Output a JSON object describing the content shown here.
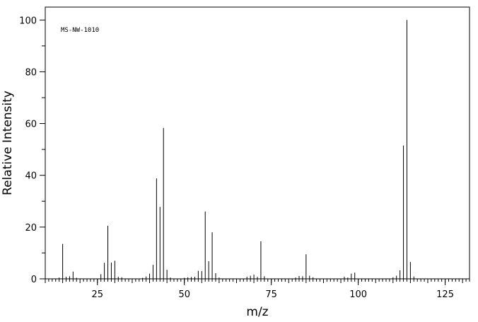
{
  "chart_data": {
    "type": "bar",
    "title": "",
    "annotation": "MS-NW-1010",
    "xlabel": "m/z",
    "ylabel": "Relative Intensity",
    "xlim": [
      10,
      132
    ],
    "ylim": [
      0,
      105
    ],
    "xticks": [
      25,
      50,
      75,
      100,
      125
    ],
    "yticks": [
      0,
      20,
      40,
      60,
      80,
      100
    ],
    "grid": false,
    "legend": "none",
    "x": [
      14,
      15,
      16,
      17,
      18,
      19,
      26,
      27,
      28,
      29,
      30,
      31,
      32,
      38,
      39,
      40,
      41,
      42,
      43,
      44,
      45,
      46,
      50,
      51,
      52,
      53,
      54,
      55,
      56,
      57,
      58,
      59,
      60,
      68,
      69,
      70,
      71,
      72,
      73,
      82,
      83,
      84,
      85,
      86,
      87,
      96,
      97,
      98,
      99,
      110,
      111,
      112,
      113,
      114,
      115,
      116
    ],
    "values": [
      0.5,
      13.5,
      0.8,
      1.0,
      2.8,
      0.4,
      1.8,
      6.2,
      20.5,
      6.3,
      7.0,
      0.8,
      0.6,
      0.4,
      0.9,
      2.0,
      5.4,
      38.8,
      27.8,
      58.3,
      3.5,
      0.5,
      0.4,
      0.6,
      0.7,
      0.8,
      3.1,
      3.0,
      26.0,
      6.8,
      18.0,
      2.2,
      0.5,
      0.8,
      1.2,
      1.6,
      0.8,
      14.5,
      1.0,
      0.5,
      1.1,
      1.0,
      9.5,
      1.2,
      0.6,
      0.8,
      0.5,
      2.0,
      2.4,
      0.6,
      1.2,
      3.3,
      51.5,
      100.0,
      6.5,
      0.9
    ]
  }
}
